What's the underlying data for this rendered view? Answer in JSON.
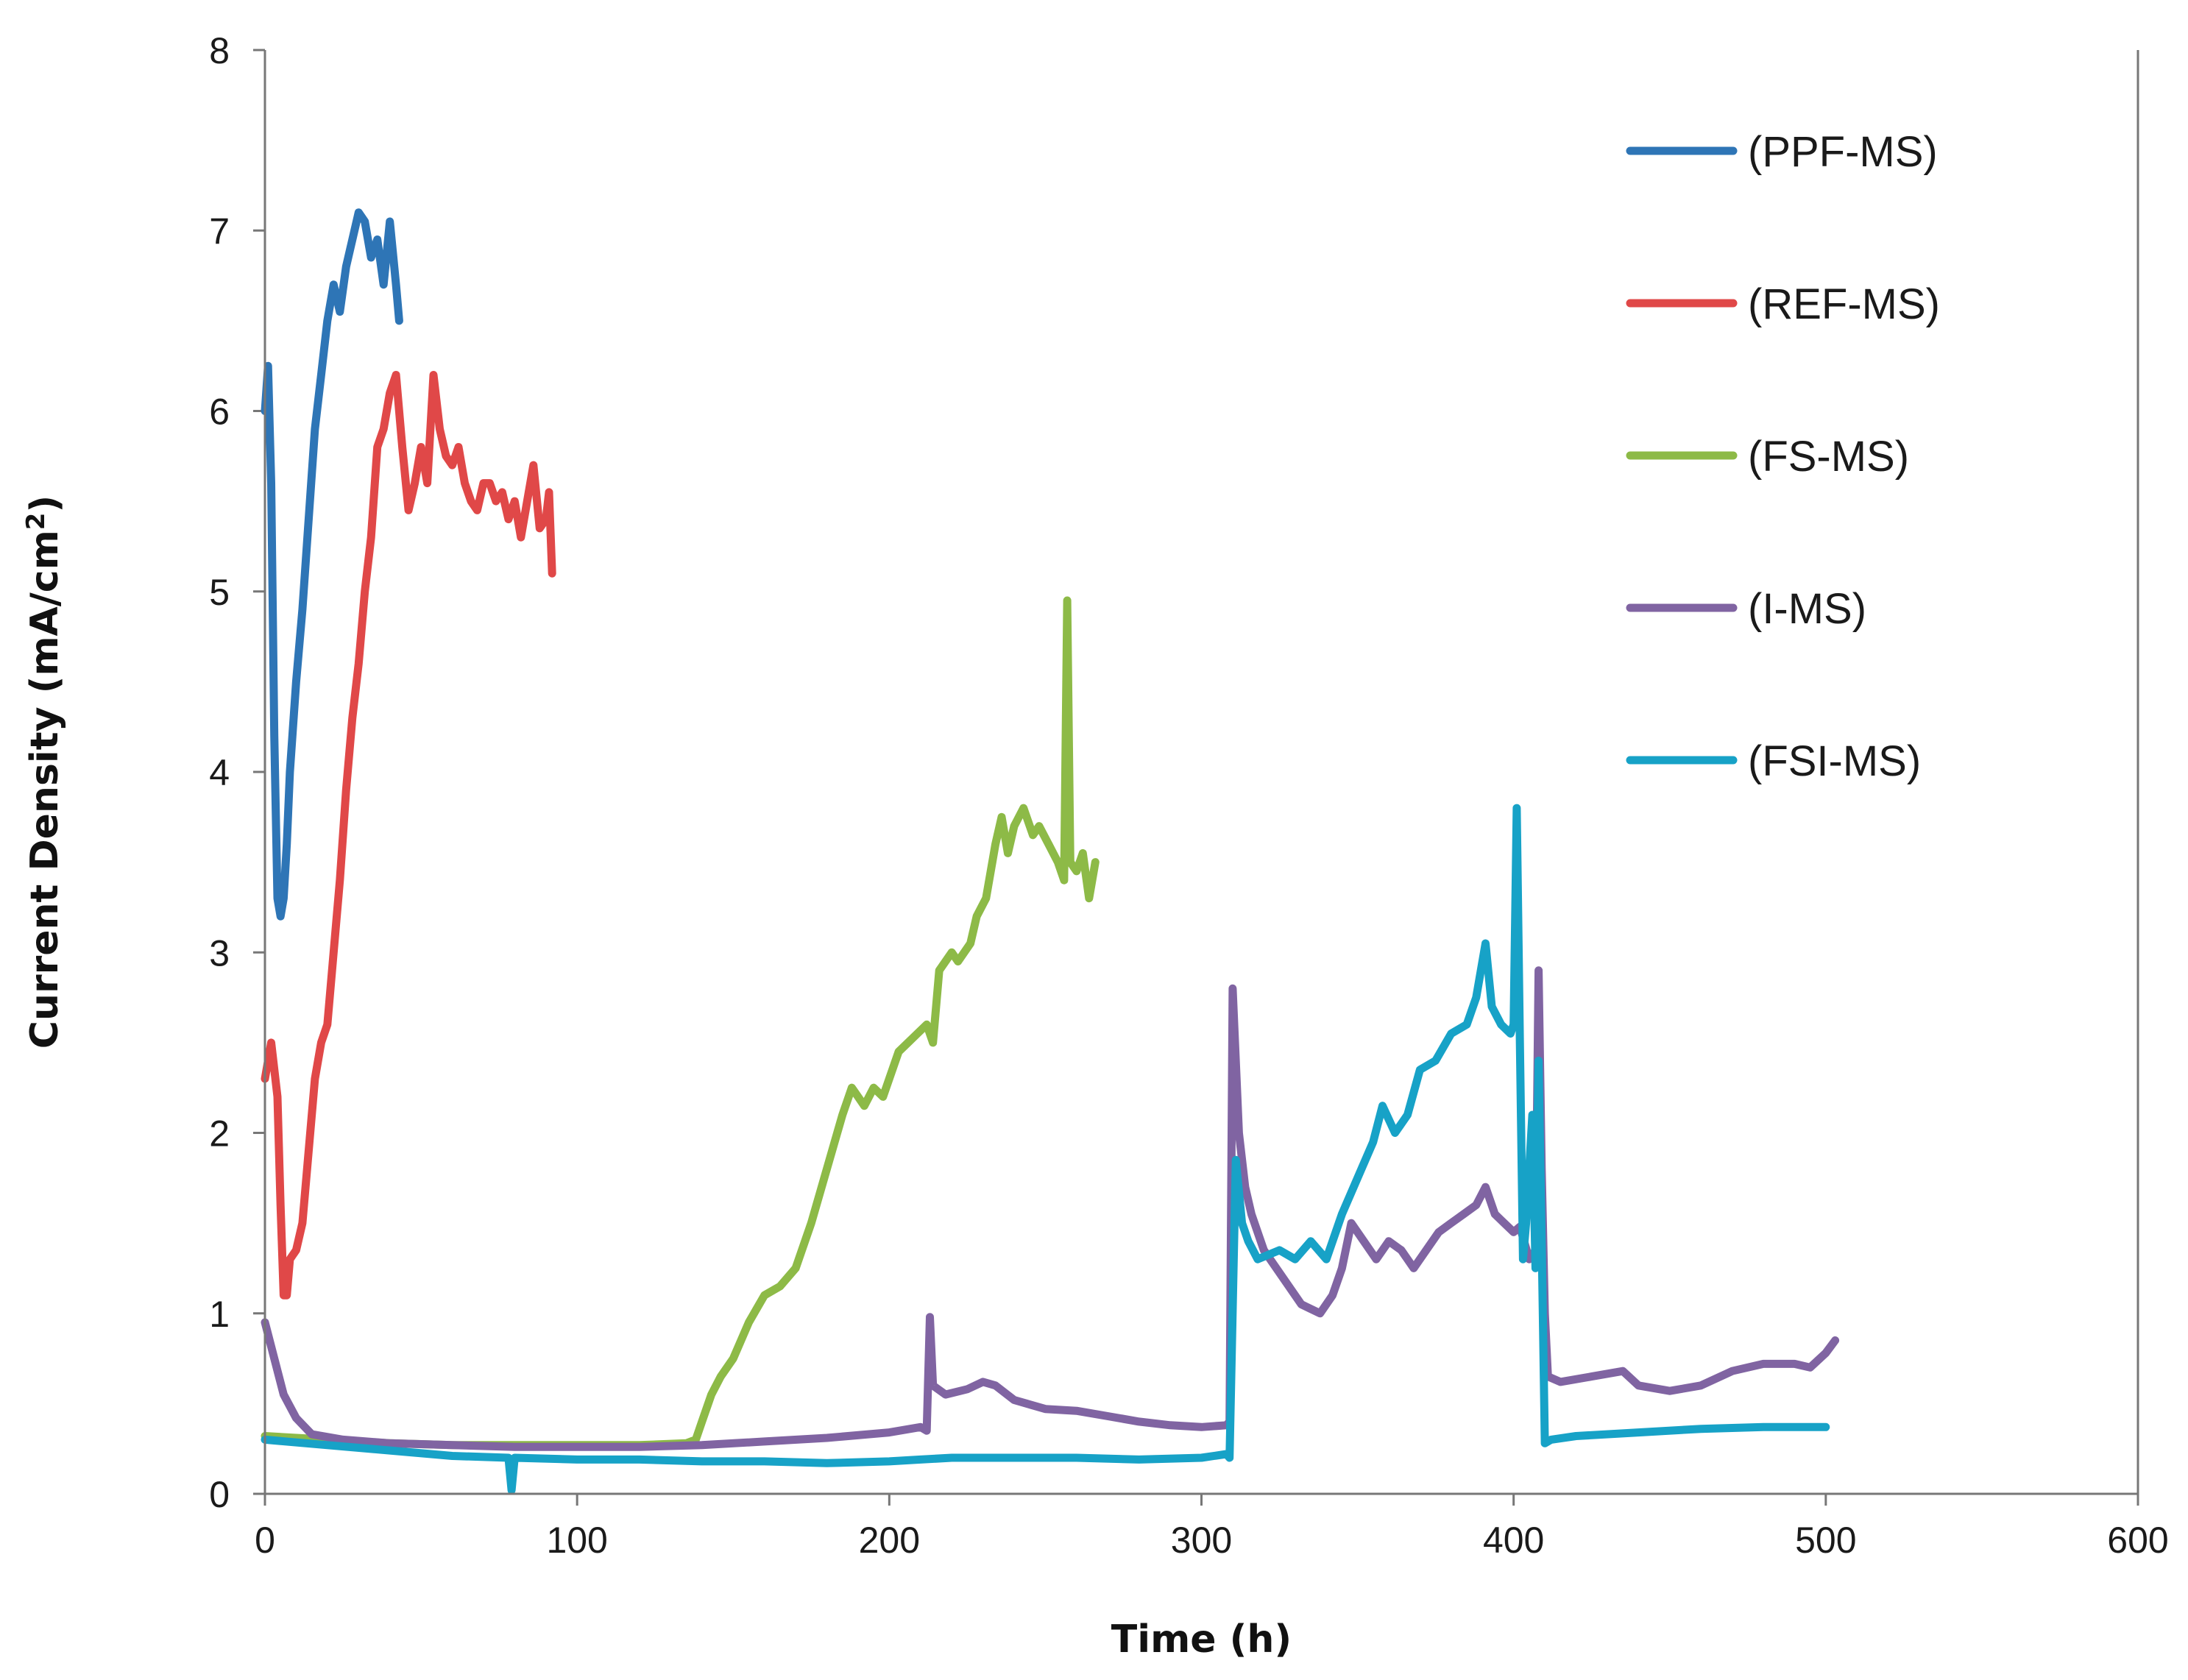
{
  "chart_data": {
    "type": "line",
    "title": "",
    "xlabel": "Time (h)",
    "ylabel_main": "Current Density (mA/cm",
    "ylabel_sup": "2",
    "ylabel_close": ")",
    "xlim": [
      0,
      600
    ],
    "ylim": [
      0,
      8
    ],
    "xticks": [
      0,
      100,
      200,
      300,
      400,
      500,
      600
    ],
    "yticks": [
      0,
      1,
      2,
      3,
      4,
      5,
      6,
      7,
      8
    ],
    "grid": false,
    "legend_position": "top-right",
    "series": [
      {
        "name": "(PPF-MS)",
        "color": "#2E75B6",
        "points": [
          [
            0,
            6.0
          ],
          [
            1,
            6.25
          ],
          [
            2,
            5.6
          ],
          [
            3,
            4.2
          ],
          [
            4,
            3.3
          ],
          [
            5,
            3.2
          ],
          [
            6,
            3.3
          ],
          [
            7,
            3.6
          ],
          [
            8,
            4.0
          ],
          [
            10,
            4.5
          ],
          [
            12,
            4.9
          ],
          [
            14,
            5.4
          ],
          [
            16,
            5.9
          ],
          [
            18,
            6.2
          ],
          [
            20,
            6.5
          ],
          [
            22,
            6.7
          ],
          [
            24,
            6.55
          ],
          [
            26,
            6.8
          ],
          [
            28,
            6.95
          ],
          [
            30,
            7.1
          ],
          [
            32,
            7.05
          ],
          [
            34,
            6.85
          ],
          [
            36,
            6.95
          ],
          [
            38,
            6.7
          ],
          [
            40,
            7.05
          ],
          [
            42,
            6.7
          ],
          [
            43,
            6.5
          ]
        ]
      },
      {
        "name": "(REF-MS)",
        "color": "#E04848",
        "points": [
          [
            0,
            2.3
          ],
          [
            2,
            2.5
          ],
          [
            4,
            2.2
          ],
          [
            5,
            1.6
          ],
          [
            6,
            1.1
          ],
          [
            7,
            1.1
          ],
          [
            8,
            1.3
          ],
          [
            10,
            1.35
          ],
          [
            12,
            1.5
          ],
          [
            14,
            1.9
          ],
          [
            16,
            2.3
          ],
          [
            18,
            2.5
          ],
          [
            20,
            2.6
          ],
          [
            22,
            3.0
          ],
          [
            24,
            3.4
          ],
          [
            26,
            3.9
          ],
          [
            28,
            4.3
          ],
          [
            30,
            4.6
          ],
          [
            32,
            5.0
          ],
          [
            34,
            5.3
          ],
          [
            36,
            5.8
          ],
          [
            38,
            5.9
          ],
          [
            40,
            6.1
          ],
          [
            42,
            6.2
          ],
          [
            44,
            5.8
          ],
          [
            46,
            5.45
          ],
          [
            48,
            5.6
          ],
          [
            50,
            5.8
          ],
          [
            52,
            5.6
          ],
          [
            54,
            6.2
          ],
          [
            56,
            5.9
          ],
          [
            58,
            5.75
          ],
          [
            60,
            5.7
          ],
          [
            62,
            5.8
          ],
          [
            64,
            5.6
          ],
          [
            66,
            5.5
          ],
          [
            68,
            5.45
          ],
          [
            70,
            5.6
          ],
          [
            72,
            5.6
          ],
          [
            74,
            5.5
          ],
          [
            76,
            5.55
          ],
          [
            78,
            5.4
          ],
          [
            80,
            5.5
          ],
          [
            82,
            5.3
          ],
          [
            84,
            5.5
          ],
          [
            86,
            5.7
          ],
          [
            88,
            5.35
          ],
          [
            90,
            5.4
          ],
          [
            91,
            5.55
          ],
          [
            92,
            5.1
          ]
        ]
      },
      {
        "name": "(FS-MS)",
        "color": "#8DBA47",
        "points": [
          [
            0,
            0.32
          ],
          [
            20,
            0.3
          ],
          [
            40,
            0.28
          ],
          [
            60,
            0.27
          ],
          [
            80,
            0.27
          ],
          [
            100,
            0.27
          ],
          [
            120,
            0.27
          ],
          [
            135,
            0.28
          ],
          [
            138,
            0.3
          ],
          [
            140,
            0.4
          ],
          [
            143,
            0.55
          ],
          [
            146,
            0.65
          ],
          [
            150,
            0.75
          ],
          [
            155,
            0.95
          ],
          [
            160,
            1.1
          ],
          [
            165,
            1.15
          ],
          [
            170,
            1.25
          ],
          [
            175,
            1.5
          ],
          [
            180,
            1.8
          ],
          [
            185,
            2.1
          ],
          [
            188,
            2.25
          ],
          [
            190,
            2.2
          ],
          [
            192,
            2.15
          ],
          [
            195,
            2.25
          ],
          [
            198,
            2.2
          ],
          [
            200,
            2.3
          ],
          [
            203,
            2.45
          ],
          [
            206,
            2.5
          ],
          [
            209,
            2.55
          ],
          [
            212,
            2.6
          ],
          [
            214,
            2.5
          ],
          [
            216,
            2.9
          ],
          [
            220,
            3.0
          ],
          [
            222,
            2.95
          ],
          [
            226,
            3.05
          ],
          [
            228,
            3.2
          ],
          [
            231,
            3.3
          ],
          [
            234,
            3.6
          ],
          [
            236,
            3.75
          ],
          [
            238,
            3.55
          ],
          [
            240,
            3.7
          ],
          [
            243,
            3.8
          ],
          [
            246,
            3.65
          ],
          [
            248,
            3.7
          ],
          [
            251,
            3.6
          ],
          [
            254,
            3.5
          ],
          [
            256,
            3.4
          ],
          [
            257,
            4.95
          ],
          [
            258,
            3.5
          ],
          [
            260,
            3.45
          ],
          [
            262,
            3.55
          ],
          [
            264,
            3.3
          ],
          [
            266,
            3.5
          ]
        ]
      },
      {
        "name": "(I-MS)",
        "color": "#8064A2",
        "points": [
          [
            0,
            0.95
          ],
          [
            3,
            0.75
          ],
          [
            6,
            0.55
          ],
          [
            10,
            0.42
          ],
          [
            15,
            0.33
          ],
          [
            25,
            0.3
          ],
          [
            40,
            0.28
          ],
          [
            60,
            0.27
          ],
          [
            80,
            0.26
          ],
          [
            100,
            0.26
          ],
          [
            120,
            0.26
          ],
          [
            140,
            0.27
          ],
          [
            160,
            0.29
          ],
          [
            180,
            0.31
          ],
          [
            200,
            0.34
          ],
          [
            210,
            0.37
          ],
          [
            212,
            0.35
          ],
          [
            213,
            0.98
          ],
          [
            214,
            0.6
          ],
          [
            218,
            0.55
          ],
          [
            225,
            0.58
          ],
          [
            230,
            0.62
          ],
          [
            234,
            0.6
          ],
          [
            240,
            0.52
          ],
          [
            250,
            0.47
          ],
          [
            260,
            0.46
          ],
          [
            270,
            0.43
          ],
          [
            280,
            0.4
          ],
          [
            290,
            0.38
          ],
          [
            300,
            0.37
          ],
          [
            308,
            0.38
          ],
          [
            309,
            0.4
          ],
          [
            310,
            2.8
          ],
          [
            312,
            2.0
          ],
          [
            314,
            1.7
          ],
          [
            316,
            1.55
          ],
          [
            320,
            1.35
          ],
          [
            326,
            1.2
          ],
          [
            332,
            1.05
          ],
          [
            338,
            1.0
          ],
          [
            342,
            1.1
          ],
          [
            345,
            1.25
          ],
          [
            348,
            1.5
          ],
          [
            352,
            1.4
          ],
          [
            356,
            1.3
          ],
          [
            360,
            1.4
          ],
          [
            364,
            1.35
          ],
          [
            368,
            1.25
          ],
          [
            372,
            1.35
          ],
          [
            376,
            1.45
          ],
          [
            380,
            1.5
          ],
          [
            384,
            1.55
          ],
          [
            388,
            1.6
          ],
          [
            391,
            1.7
          ],
          [
            394,
            1.55
          ],
          [
            397,
            1.5
          ],
          [
            400,
            1.45
          ],
          [
            402,
            1.48
          ],
          [
            405,
            1.3
          ],
          [
            407,
            1.35
          ],
          [
            408,
            2.9
          ],
          [
            409,
            1.8
          ],
          [
            410,
            1.0
          ],
          [
            411,
            0.65
          ],
          [
            415,
            0.62
          ],
          [
            425,
            0.65
          ],
          [
            435,
            0.68
          ],
          [
            440,
            0.6
          ],
          [
            450,
            0.57
          ],
          [
            460,
            0.6
          ],
          [
            470,
            0.68
          ],
          [
            480,
            0.72
          ],
          [
            490,
            0.72
          ],
          [
            495,
            0.7
          ],
          [
            500,
            0.78
          ],
          [
            503,
            0.85
          ]
        ]
      },
      {
        "name": "(FSI-MS)",
        "color": "#17A2C7",
        "points": [
          [
            0,
            0.3
          ],
          [
            20,
            0.27
          ],
          [
            40,
            0.24
          ],
          [
            60,
            0.21
          ],
          [
            78,
            0.2
          ],
          [
            79,
            0.02
          ],
          [
            80,
            0.2
          ],
          [
            100,
            0.19
          ],
          [
            120,
            0.19
          ],
          [
            140,
            0.18
          ],
          [
            160,
            0.18
          ],
          [
            180,
            0.17
          ],
          [
            200,
            0.18
          ],
          [
            210,
            0.19
          ],
          [
            220,
            0.2
          ],
          [
            240,
            0.2
          ],
          [
            260,
            0.2
          ],
          [
            280,
            0.19
          ],
          [
            300,
            0.2
          ],
          [
            308,
            0.22
          ],
          [
            309,
            0.2
          ],
          [
            311,
            1.85
          ],
          [
            313,
            1.5
          ],
          [
            315,
            1.4
          ],
          [
            318,
            1.3
          ],
          [
            325,
            1.35
          ],
          [
            330,
            1.3
          ],
          [
            335,
            1.4
          ],
          [
            340,
            1.3
          ],
          [
            345,
            1.55
          ],
          [
            350,
            1.75
          ],
          [
            355,
            1.95
          ],
          [
            358,
            2.15
          ],
          [
            362,
            2.0
          ],
          [
            366,
            2.1
          ],
          [
            370,
            2.35
          ],
          [
            375,
            2.4
          ],
          [
            380,
            2.55
          ],
          [
            385,
            2.6
          ],
          [
            388,
            2.75
          ],
          [
            391,
            3.05
          ],
          [
            393,
            2.7
          ],
          [
            396,
            2.6
          ],
          [
            399,
            2.55
          ],
          [
            400,
            2.6
          ],
          [
            401,
            3.8
          ],
          [
            402,
            2.5
          ],
          [
            403,
            1.3
          ],
          [
            404,
            1.5
          ],
          [
            406,
            2.1
          ],
          [
            407,
            1.25
          ],
          [
            408,
            2.4
          ],
          [
            409,
            1.4
          ],
          [
            410,
            0.28
          ],
          [
            412,
            0.3
          ],
          [
            420,
            0.32
          ],
          [
            440,
            0.34
          ],
          [
            460,
            0.36
          ],
          [
            480,
            0.37
          ],
          [
            500,
            0.37
          ]
        ]
      }
    ]
  }
}
